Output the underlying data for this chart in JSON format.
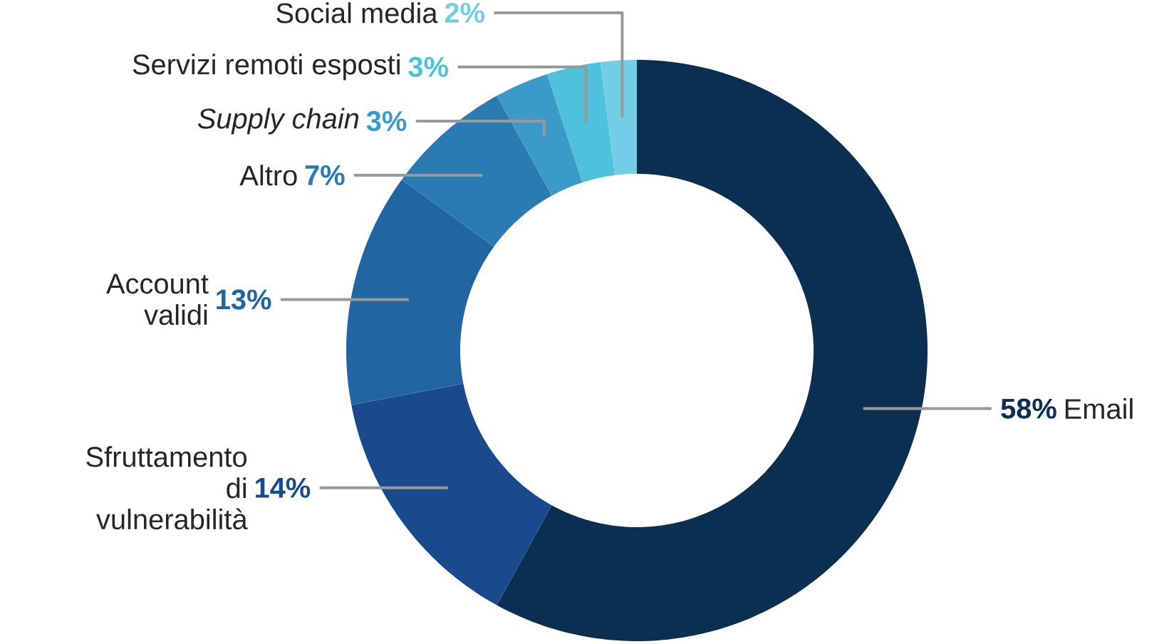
{
  "chart_data": {
    "type": "donut",
    "categories": [
      "Email",
      "Sfruttamento di vulnerabilità",
      "Account validi",
      "Altro",
      "*Supply chain*",
      "Servizi remoti esposti",
      "Social media"
    ],
    "values": [
      58,
      14,
      13,
      7,
      3,
      3,
      2
    ],
    "colors": [
      "#0b2f50",
      "#194a8d",
      "#2166a3",
      "#2b7bb3",
      "#3a9bc9",
      "#4ec1dc",
      "#73cde6"
    ],
    "value_labels": [
      "58%",
      "14%",
      "13%",
      "7%",
      "3%",
      "3%",
      "2%"
    ]
  }
}
